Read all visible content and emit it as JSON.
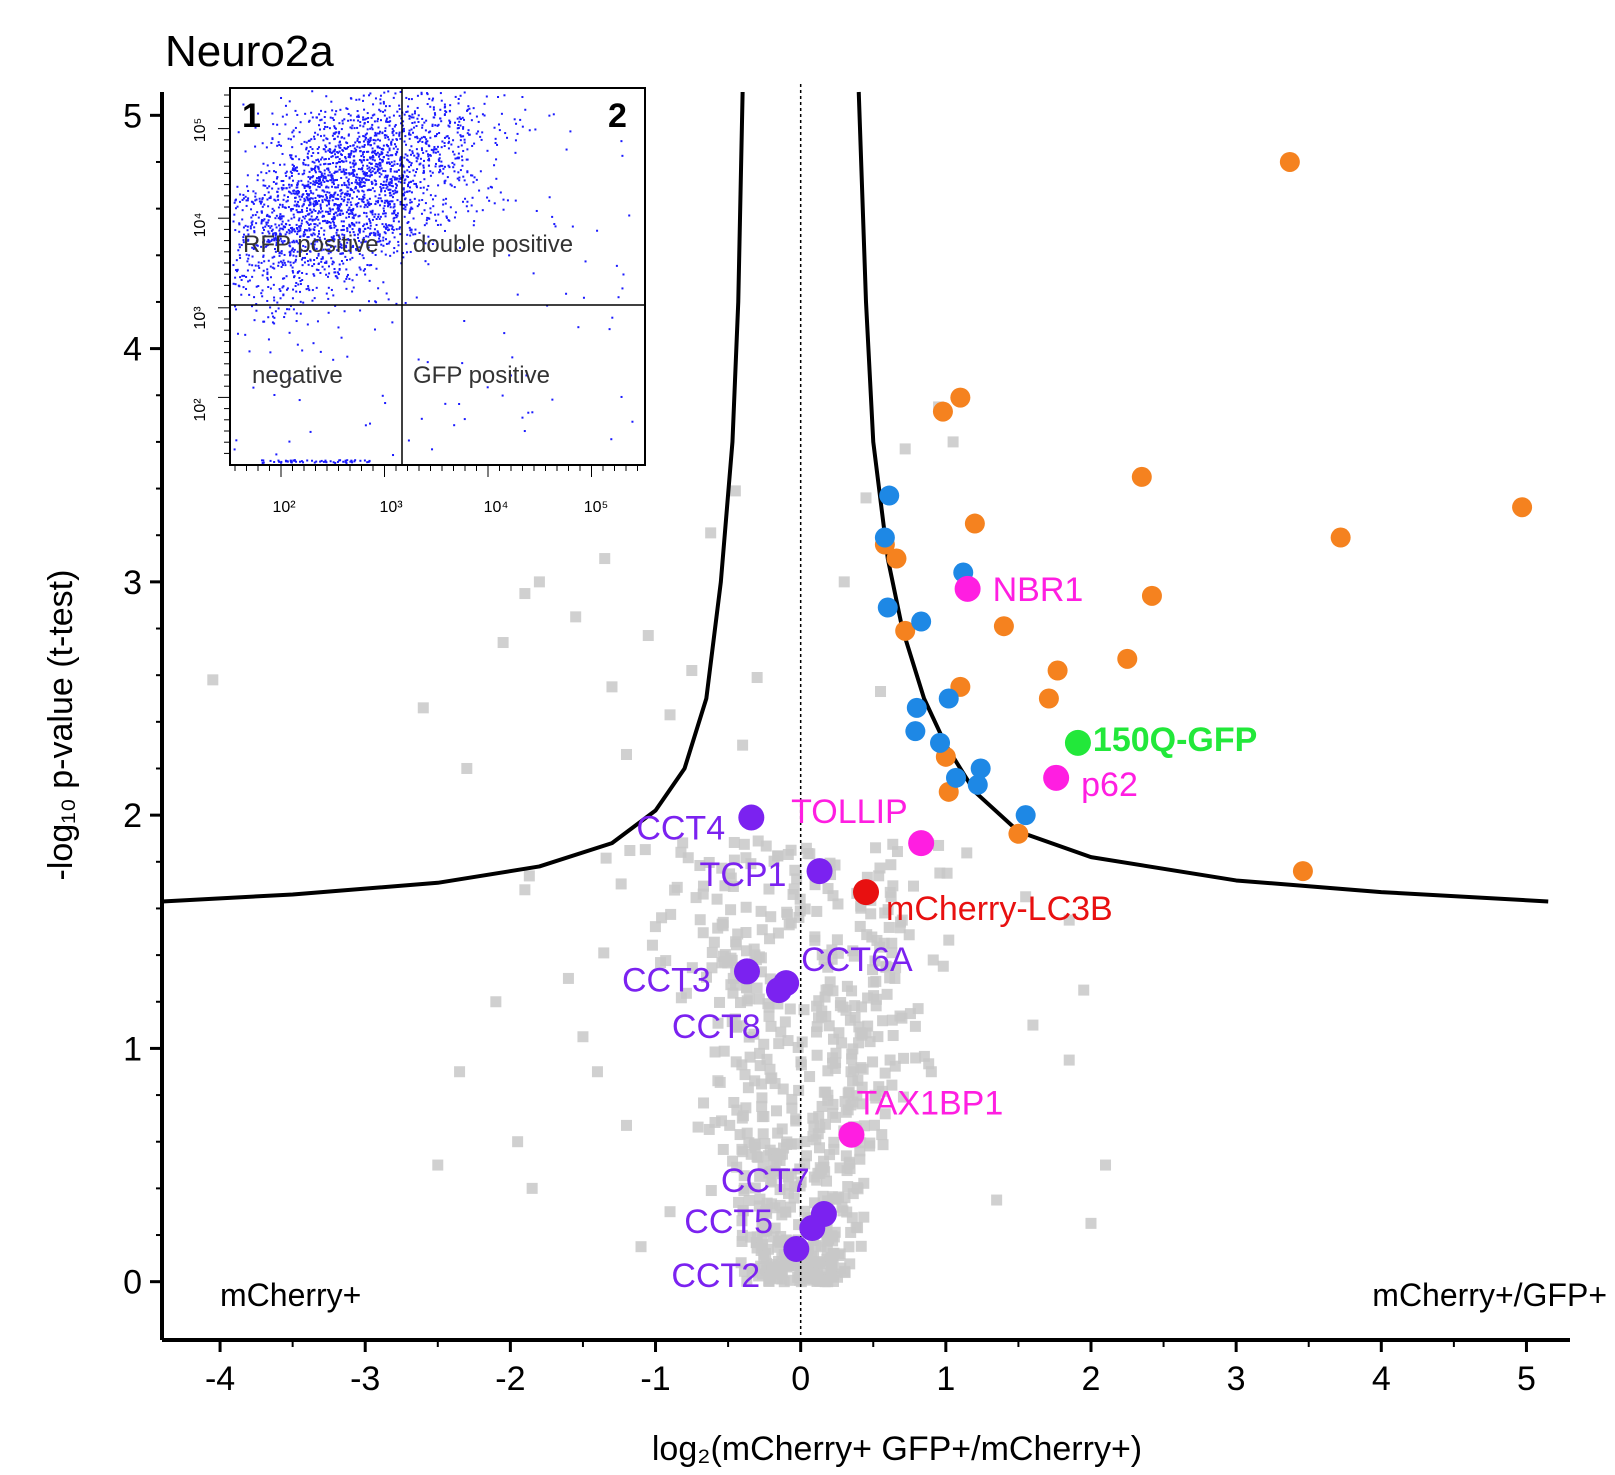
{
  "chart_data": {
    "type": "scatter",
    "title": "Neuro2a",
    "xlabel": "log₂(mCherry+ GFP+/mCherry+)",
    "ylabel": "-log₁₀ p-value (t-test)",
    "xlim": [
      -4.4,
      5.3
    ],
    "ylim": [
      -0.25,
      5.1
    ],
    "x_ticks": [
      -4,
      -3,
      -2,
      -1,
      0,
      1,
      2,
      3,
      4,
      5
    ],
    "y_ticks": [
      0,
      1,
      2,
      3,
      4,
      5
    ],
    "corner_labels": {
      "left": "mCherry+",
      "right": "mCherry+/GFP+"
    },
    "colors": {
      "background": "#c8c8c8",
      "enriched": "#f5821f",
      "receptor": "#1e88e5",
      "autophagy_receptor": "#ff1ee1",
      "cct": "#7b22f0",
      "bait": "#22e83a",
      "reporter": "#e81010",
      "threshold": "#000000"
    },
    "threshold_curve": {
      "right": [
        [
          0.4,
          5.1
        ],
        [
          0.45,
          4.2
        ],
        [
          0.5,
          3.6
        ],
        [
          0.6,
          3.1
        ],
        [
          0.7,
          2.8
        ],
        [
          0.85,
          2.5
        ],
        [
          1.0,
          2.3
        ],
        [
          1.2,
          2.1
        ],
        [
          1.5,
          1.93
        ],
        [
          2.0,
          1.82
        ],
        [
          3.0,
          1.72
        ],
        [
          4.0,
          1.67
        ],
        [
          5.15,
          1.63
        ]
      ],
      "left": [
        [
          -0.4,
          5.1
        ],
        [
          -0.43,
          4.2
        ],
        [
          -0.47,
          3.6
        ],
        [
          -0.55,
          3.0
        ],
        [
          -0.65,
          2.5
        ],
        [
          -0.8,
          2.2
        ],
        [
          -1.0,
          2.02
        ],
        [
          -1.3,
          1.88
        ],
        [
          -1.8,
          1.78
        ],
        [
          -2.5,
          1.71
        ],
        [
          -3.5,
          1.66
        ],
        [
          -4.4,
          1.63
        ]
      ]
    },
    "series": [
      {
        "group": "orange",
        "color": "#f5821f",
        "points": [
          [
            3.37,
            4.8
          ],
          [
            1.1,
            3.79
          ],
          [
            0.98,
            3.73
          ],
          [
            2.35,
            3.45
          ],
          [
            4.97,
            3.32
          ],
          [
            3.72,
            3.19
          ],
          [
            1.2,
            3.25
          ],
          [
            0.66,
            3.1
          ],
          [
            0.58,
            3.16
          ],
          [
            2.42,
            2.94
          ],
          [
            1.4,
            2.81
          ],
          [
            0.72,
            2.79
          ],
          [
            2.25,
            2.67
          ],
          [
            1.77,
            2.62
          ],
          [
            1.1,
            2.55
          ],
          [
            1.71,
            2.5
          ],
          [
            1.0,
            2.25
          ],
          [
            3.46,
            1.76
          ],
          [
            1.5,
            1.92
          ],
          [
            1.02,
            2.1
          ]
        ]
      },
      {
        "group": "blue",
        "color": "#1e88e5",
        "points": [
          [
            0.61,
            3.37
          ],
          [
            0.58,
            3.19
          ],
          [
            1.12,
            3.04
          ],
          [
            0.6,
            2.89
          ],
          [
            0.83,
            2.83
          ],
          [
            1.02,
            2.5
          ],
          [
            0.8,
            2.46
          ],
          [
            0.79,
            2.36
          ],
          [
            0.96,
            2.31
          ],
          [
            1.24,
            2.2
          ],
          [
            1.07,
            2.16
          ],
          [
            1.22,
            2.13
          ],
          [
            1.55,
            2.0
          ]
        ]
      }
    ],
    "labeled_points": [
      {
        "label": "NBR1",
        "x": 1.15,
        "y": 2.97,
        "color": "#ff1ee1",
        "bold": false,
        "dx": 25,
        "dy": 12
      },
      {
        "label": "150Q-GFP",
        "x": 1.91,
        "y": 2.31,
        "color": "#22e83a",
        "bold": true,
        "dx": 15,
        "dy": 8
      },
      {
        "label": "p62",
        "x": 1.76,
        "y": 2.16,
        "color": "#ff1ee1",
        "bold": false,
        "dx": 25,
        "dy": 18
      },
      {
        "label": "TOLLIP",
        "x": 0.83,
        "y": 1.88,
        "color": "#ff1ee1",
        "bold": false,
        "dx": -130,
        "dy": -20
      },
      {
        "label": "mCherry-LC3B",
        "x": 0.45,
        "y": 1.67,
        "color": "#e81010",
        "bold": false,
        "dx": 20,
        "dy": 28
      },
      {
        "label": "CCT4",
        "x": -0.34,
        "y": 1.99,
        "color": "#7b22f0",
        "bold": false,
        "dx": -115,
        "dy": 22
      },
      {
        "label": "TCP1",
        "x": 0.13,
        "y": 1.76,
        "color": "#7b22f0",
        "bold": false,
        "dx": -120,
        "dy": 15
      },
      {
        "label": "CCT6A",
        "x": -0.1,
        "y": 1.28,
        "color": "#7b22f0",
        "bold": false,
        "dx": 15,
        "dy": -12
      },
      {
        "label": "CCT3",
        "x": -0.37,
        "y": 1.33,
        "color": "#7b22f0",
        "bold": false,
        "dx": -125,
        "dy": 20
      },
      {
        "label": "CCT8",
        "x": -0.15,
        "y": 1.25,
        "color": "#7b22f0",
        "bold": false,
        "dx": -107,
        "dy": 48
      },
      {
        "label": "TAX1BP1",
        "x": 0.35,
        "y": 0.63,
        "color": "#ff1ee1",
        "bold": false,
        "dx": 5,
        "dy": -20
      },
      {
        "label": "CCT7",
        "x": 0.16,
        "y": 0.29,
        "color": "#7b22f0",
        "bold": false,
        "dx": -103,
        "dy": -22
      },
      {
        "label": "CCT5",
        "x": 0.08,
        "y": 0.23,
        "color": "#7b22f0",
        "bold": false,
        "dx": -128,
        "dy": 5
      },
      {
        "label": "CCT2",
        "x": -0.03,
        "y": 0.14,
        "color": "#7b22f0",
        "bold": false,
        "dx": -125,
        "dy": 38
      }
    ],
    "background_points": [
      [
        -4.05,
        2.58
      ],
      [
        -2.6,
        2.46
      ],
      [
        -2.3,
        2.2
      ],
      [
        -1.9,
        1.68
      ],
      [
        -2.05,
        2.74
      ],
      [
        -1.9,
        2.95
      ],
      [
        -1.8,
        3.0
      ],
      [
        -1.3,
        2.55
      ],
      [
        -1.05,
        2.77
      ],
      [
        -1.2,
        2.26
      ],
      [
        -0.9,
        2.43
      ],
      [
        -0.75,
        2.62
      ],
      [
        -0.62,
        3.21
      ],
      [
        -0.45,
        3.39
      ],
      [
        -0.3,
        2.59
      ],
      [
        -1.35,
        3.1
      ],
      [
        -1.55,
        2.85
      ],
      [
        -0.4,
        2.3
      ],
      [
        -2.1,
        1.2
      ],
      [
        -2.35,
        0.9
      ],
      [
        -1.95,
        0.6
      ],
      [
        -1.85,
        0.4
      ],
      [
        -1.2,
        0.67
      ],
      [
        -1.4,
        0.9
      ],
      [
        -1.6,
        1.3
      ],
      [
        -1.5,
        1.05
      ],
      [
        0.95,
        3.75
      ],
      [
        0.72,
        3.57
      ],
      [
        1.05,
        3.6
      ],
      [
        0.45,
        3.36
      ],
      [
        0.3,
        3.0
      ],
      [
        0.55,
        2.53
      ],
      [
        0.95,
        1.87
      ],
      [
        1.55,
        1.65
      ],
      [
        1.85,
        1.55
      ],
      [
        1.95,
        1.25
      ],
      [
        1.6,
        1.1
      ],
      [
        1.85,
        0.95
      ],
      [
        2.1,
        0.5
      ],
      [
        2.0,
        0.25
      ],
      [
        1.35,
        0.35
      ],
      [
        0.7,
        1.55
      ],
      [
        -2.5,
        0.5
      ],
      [
        -0.9,
        0.3
      ],
      [
        -1.1,
        0.15
      ],
      [
        0.9,
        0.9
      ]
    ]
  }
}
